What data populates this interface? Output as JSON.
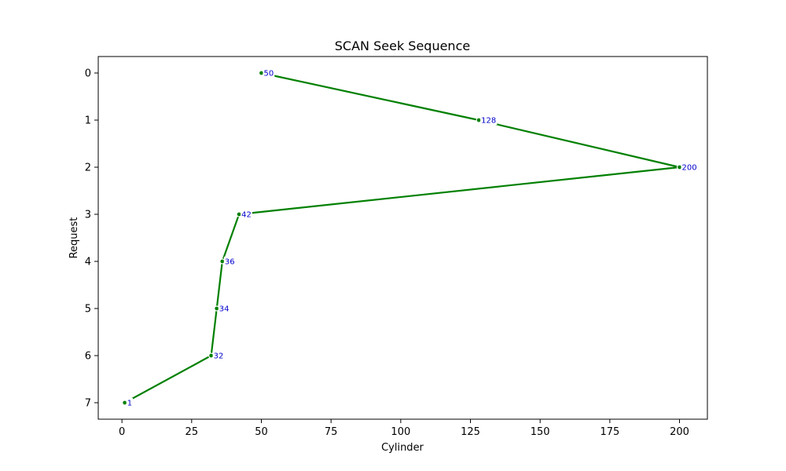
{
  "chart_data": {
    "type": "line",
    "title": "SCAN Seek Sequence",
    "xlabel": "Cylinder",
    "ylabel": "Request",
    "xlim": [
      -8.5,
      210
    ],
    "ylim": [
      7.35,
      -0.35
    ],
    "x_ticks": [
      0,
      25,
      50,
      75,
      100,
      125,
      150,
      175,
      200
    ],
    "y_ticks": [
      0,
      1,
      2,
      3,
      4,
      5,
      6,
      7
    ],
    "y_inverted": true,
    "grid": false,
    "series": [
      {
        "x": [
          50,
          128,
          200,
          42,
          36,
          34,
          32,
          1
        ],
        "y": [
          0,
          1,
          2,
          3,
          4,
          5,
          6,
          7
        ],
        "labels": [
          "50",
          "128",
          "200",
          "42",
          "36",
          "34",
          "32",
          "1"
        ]
      }
    ],
    "colors": {
      "line": "#008000",
      "label": "#0000cc"
    }
  }
}
